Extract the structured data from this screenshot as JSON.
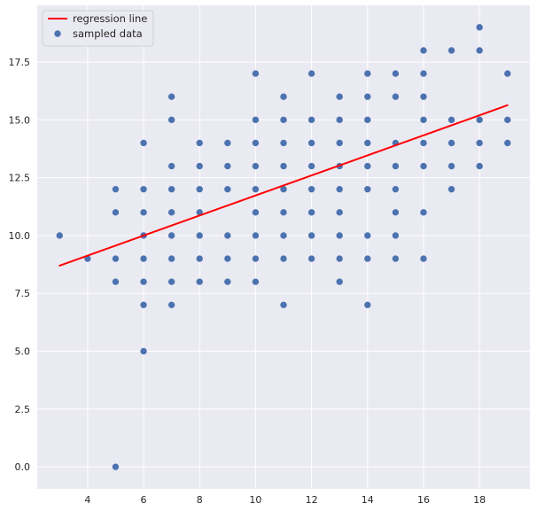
{
  "chart_data": {
    "type": "scatter",
    "title": "",
    "xlabel": "",
    "ylabel": "",
    "xlim": [
      2.2,
      19.8
    ],
    "ylim": [
      -0.95,
      19.95
    ],
    "x_ticks": [
      4,
      6,
      8,
      10,
      12,
      14,
      16,
      18
    ],
    "y_ticks": [
      0.0,
      2.5,
      5.0,
      7.5,
      10.0,
      12.5,
      15.0,
      17.5
    ],
    "x_tick_labels": [
      "4",
      "6",
      "8",
      "10",
      "12",
      "14",
      "16",
      "18"
    ],
    "y_tick_labels": [
      "0.0",
      "2.5",
      "5.0",
      "7.5",
      "10.0",
      "12.5",
      "15.0",
      "17.5"
    ],
    "grid": true,
    "legend_position": "top-left",
    "background_color": "#eaeaf2",
    "grid_color": "#ffffff",
    "series": [
      {
        "name": "regression line",
        "kind": "line",
        "color": "#ff0000",
        "points": [
          [
            3,
            8.7
          ],
          [
            19,
            15.63
          ]
        ]
      },
      {
        "name": "sampled data",
        "kind": "scatter",
        "color": "#4c72b0",
        "points": [
          [
            3,
            10
          ],
          [
            4,
            9
          ],
          [
            5,
            0
          ],
          [
            5,
            8
          ],
          [
            5,
            9
          ],
          [
            5,
            11
          ],
          [
            5,
            12
          ],
          [
            6,
            5
          ],
          [
            6,
            7
          ],
          [
            6,
            8
          ],
          [
            6,
            9
          ],
          [
            6,
            10
          ],
          [
            6,
            11
          ],
          [
            6,
            12
          ],
          [
            6,
            14
          ],
          [
            7,
            7
          ],
          [
            7,
            8
          ],
          [
            7,
            9
          ],
          [
            7,
            10
          ],
          [
            7,
            11
          ],
          [
            7,
            12
          ],
          [
            7,
            13
          ],
          [
            7,
            15
          ],
          [
            7,
            16
          ],
          [
            8,
            8
          ],
          [
            8,
            9
          ],
          [
            8,
            10
          ],
          [
            8,
            11
          ],
          [
            8,
            12
          ],
          [
            8,
            13
          ],
          [
            8,
            14
          ],
          [
            9,
            8
          ],
          [
            9,
            9
          ],
          [
            9,
            10
          ],
          [
            9,
            12
          ],
          [
            9,
            13
          ],
          [
            9,
            14
          ],
          [
            10,
            8
          ],
          [
            10,
            9
          ],
          [
            10,
            10
          ],
          [
            10,
            11
          ],
          [
            10,
            12
          ],
          [
            10,
            13
          ],
          [
            10,
            14
          ],
          [
            10,
            15
          ],
          [
            10,
            17
          ],
          [
            11,
            7
          ],
          [
            11,
            9
          ],
          [
            11,
            10
          ],
          [
            11,
            11
          ],
          [
            11,
            12
          ],
          [
            11,
            13
          ],
          [
            11,
            14
          ],
          [
            11,
            15
          ],
          [
            11,
            16
          ],
          [
            12,
            9
          ],
          [
            12,
            10
          ],
          [
            12,
            11
          ],
          [
            12,
            12
          ],
          [
            12,
            13
          ],
          [
            12,
            14
          ],
          [
            12,
            15
          ],
          [
            12,
            17
          ],
          [
            13,
            8
          ],
          [
            13,
            9
          ],
          [
            13,
            10
          ],
          [
            13,
            11
          ],
          [
            13,
            12
          ],
          [
            13,
            13
          ],
          [
            13,
            14
          ],
          [
            13,
            15
          ],
          [
            13,
            16
          ],
          [
            14,
            7
          ],
          [
            14,
            9
          ],
          [
            14,
            10
          ],
          [
            14,
            12
          ],
          [
            14,
            13
          ],
          [
            14,
            14
          ],
          [
            14,
            15
          ],
          [
            14,
            16
          ],
          [
            14,
            17
          ],
          [
            15,
            9
          ],
          [
            15,
            10
          ],
          [
            15,
            11
          ],
          [
            15,
            12
          ],
          [
            15,
            13
          ],
          [
            15,
            14
          ],
          [
            15,
            16
          ],
          [
            15,
            17
          ],
          [
            16,
            9
          ],
          [
            16,
            11
          ],
          [
            16,
            13
          ],
          [
            16,
            14
          ],
          [
            16,
            15
          ],
          [
            16,
            16
          ],
          [
            16,
            17
          ],
          [
            16,
            18
          ],
          [
            17,
            12
          ],
          [
            17,
            13
          ],
          [
            17,
            14
          ],
          [
            17,
            15
          ],
          [
            17,
            18
          ],
          [
            18,
            13
          ],
          [
            18,
            14
          ],
          [
            18,
            15
          ],
          [
            18,
            18
          ],
          [
            18,
            19
          ],
          [
            19,
            14
          ],
          [
            19,
            15
          ],
          [
            19,
            17
          ]
        ]
      }
    ]
  }
}
